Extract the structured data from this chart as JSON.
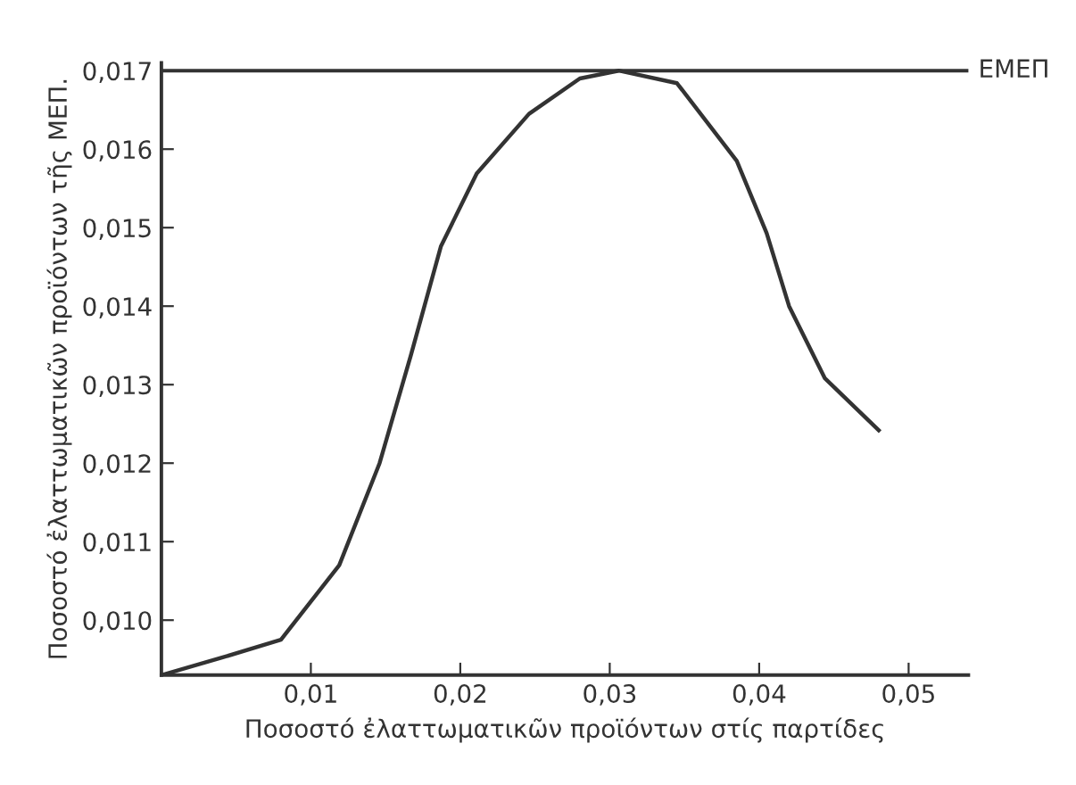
{
  "chart_data": {
    "type": "line",
    "xlabel": "Ποσοστό ἐλαττωματικῶν προϊόντων στίς παρτίδες",
    "ylabel": "Ποσοστό ἐλαττωματικῶν προϊόντων τῆς ΜΕΠ.",
    "series": [
      {
        "color": "#333333",
        "x": [
          0,
          0.004,
          0.008,
          0.0119,
          0.0146,
          0.0167,
          0.0187,
          0.0211,
          0.0246,
          0.028,
          0.0306,
          0.0345,
          0.0385,
          0.0405,
          0.042,
          0.0444,
          0.048
        ],
        "values": [
          0.0093,
          0.00952,
          0.00975,
          0.0107,
          0.012,
          0.01338,
          0.01476,
          0.01569,
          0.01645,
          0.0169,
          0.017,
          0.01684,
          0.01585,
          0.01493,
          0.014,
          0.01308,
          0.01242
        ]
      }
    ],
    "xlim": [
      0,
      0.054
    ],
    "ylim": [
      0.0093,
      0.0171
    ],
    "xticks": [
      {
        "value": 0.01,
        "label": "0,01"
      },
      {
        "value": 0.02,
        "label": "0,02"
      },
      {
        "value": 0.03,
        "label": "0,03"
      },
      {
        "value": 0.04,
        "label": "0,04"
      },
      {
        "value": 0.05,
        "label": "0,05"
      }
    ],
    "yticks": [
      {
        "value": 0.01,
        "label": "0,010"
      },
      {
        "value": 0.011,
        "label": "0,011"
      },
      {
        "value": 0.012,
        "label": "0,012"
      },
      {
        "value": 0.013,
        "label": "0,013"
      },
      {
        "value": 0.014,
        "label": "0,014"
      },
      {
        "value": 0.015,
        "label": "0,015"
      },
      {
        "value": 0.016,
        "label": "0,016"
      },
      {
        "value": 0.017,
        "label": "0,017"
      }
    ],
    "ref_lines": [
      {
        "axis": "y",
        "value": 0.017,
        "label": "ΕΜΕΠ",
        "color": "#333333",
        "line_style": "solid"
      }
    ],
    "grid": false,
    "legend": false,
    "marker": "none",
    "line_style": "solid"
  }
}
